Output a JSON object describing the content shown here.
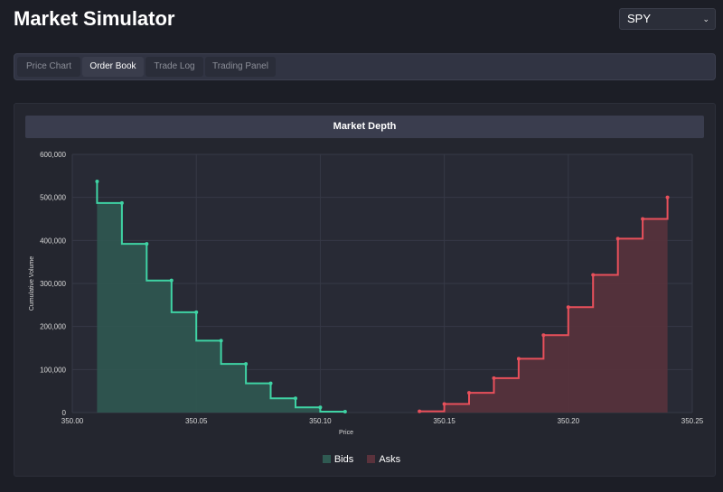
{
  "header": {
    "title": "Market Simulator",
    "symbol_selected": "SPY",
    "chevron_glyph": "⌄"
  },
  "tabs": [
    {
      "label": "Price Chart",
      "active": false
    },
    {
      "label": "Order Book",
      "active": true
    },
    {
      "label": "Trade Log",
      "active": false
    },
    {
      "label": "Trading Panel",
      "active": false
    }
  ],
  "panel": {
    "title": "Market Depth"
  },
  "colors": {
    "bids": "#3fd3a4",
    "bids_fill": "#2f5a52",
    "asks": "#e8505b",
    "asks_fill": "#5a323c"
  },
  "chart_data": {
    "type": "area",
    "title": "Market Depth",
    "xlabel": "Price",
    "ylabel": "Cumulative Volume",
    "xlim": [
      350.0,
      350.25
    ],
    "ylim": [
      0,
      600000
    ],
    "x_ticks": [
      "350.00",
      "350.05",
      "350.10",
      "350.15",
      "350.20",
      "350.25"
    ],
    "y_ticks": [
      "0",
      "100,000",
      "200,000",
      "300,000",
      "400,000",
      "500,000",
      "600,000"
    ],
    "grid": true,
    "legend_position": "bottom",
    "series": [
      {
        "name": "Bids",
        "x": [
          350.01,
          350.02,
          350.03,
          350.04,
          350.05,
          350.06,
          350.07,
          350.08,
          350.09,
          350.1,
          350.11
        ],
        "y": [
          537000,
          487000,
          392000,
          307000,
          233000,
          167000,
          113000,
          68000,
          33000,
          12000,
          2000
        ]
      },
      {
        "name": "Asks",
        "x": [
          350.14,
          350.15,
          350.16,
          350.17,
          350.18,
          350.19,
          350.2,
          350.21,
          350.22,
          350.23,
          350.24
        ],
        "y": [
          3000,
          20000,
          46000,
          80000,
          125000,
          180000,
          245000,
          320000,
          404000,
          450000,
          500000
        ]
      }
    ]
  }
}
